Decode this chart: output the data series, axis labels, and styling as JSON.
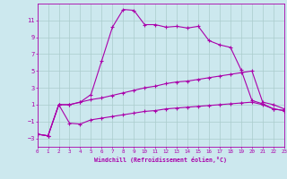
{
  "xlabel": "Windchill (Refroidissement éolien,°C)",
  "background_color": "#cce8ee",
  "grid_color": "#aacccc",
  "line_color": "#aa00aa",
  "xmin": 0,
  "xmax": 23,
  "ymin": -4,
  "ymax": 13,
  "yticks": [
    -3,
    -1,
    1,
    3,
    5,
    7,
    9,
    11
  ],
  "xticks": [
    0,
    1,
    2,
    3,
    4,
    5,
    6,
    7,
    8,
    9,
    10,
    11,
    12,
    13,
    14,
    15,
    16,
    17,
    18,
    19,
    20,
    21,
    22,
    23
  ],
  "line1_x": [
    0,
    1,
    2,
    3,
    4,
    5,
    6,
    7,
    8,
    9,
    10,
    11,
    12,
    13,
    14,
    15,
    16,
    17,
    18,
    19,
    20,
    21,
    22,
    23
  ],
  "line1_y": [
    -2.5,
    -2.7,
    1.0,
    1.0,
    1.3,
    2.2,
    6.2,
    10.2,
    12.3,
    12.2,
    10.5,
    10.5,
    10.2,
    10.3,
    10.1,
    10.3,
    8.6,
    8.1,
    7.8,
    5.1,
    1.5,
    1.1,
    0.5,
    0.3
  ],
  "line2_x": [
    0,
    1,
    2,
    3,
    4,
    5,
    6,
    7,
    8,
    9,
    10,
    11,
    12,
    13,
    14,
    15,
    16,
    17,
    18,
    19,
    20,
    21,
    22,
    23
  ],
  "line2_y": [
    -2.5,
    -2.7,
    1.0,
    1.0,
    1.3,
    1.6,
    1.8,
    2.1,
    2.4,
    2.7,
    3.0,
    3.2,
    3.5,
    3.7,
    3.8,
    4.0,
    4.2,
    4.4,
    4.6,
    4.8,
    5.0,
    1.3,
    1.0,
    0.5
  ],
  "line3_x": [
    0,
    1,
    2,
    3,
    4,
    5,
    6,
    7,
    8,
    9,
    10,
    11,
    12,
    13,
    14,
    15,
    16,
    17,
    18,
    19,
    20,
    21,
    22,
    23
  ],
  "line3_y": [
    -2.5,
    -2.7,
    1.0,
    -1.2,
    -1.3,
    -0.8,
    -0.6,
    -0.4,
    -0.2,
    0.0,
    0.2,
    0.3,
    0.5,
    0.6,
    0.7,
    0.8,
    0.9,
    1.0,
    1.1,
    1.2,
    1.3,
    1.0,
    0.5,
    0.3
  ]
}
